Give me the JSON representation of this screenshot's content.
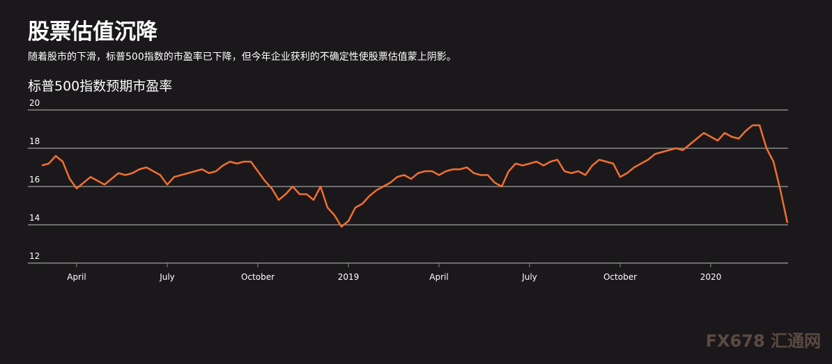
{
  "title": "股票估值沉降",
  "subtitle": "随着股市的下滑，标普500指数的市盈率已下降，但今年企业获利的不确定性使股票估值蒙上阴影。",
  "watermark": "FX678 汇通网",
  "chart_data": {
    "type": "line",
    "title": "标普500指数预期市盈率",
    "categories": [
      null,
      null,
      null,
      null,
      null,
      "April",
      null,
      null,
      null,
      null,
      null,
      null,
      null,
      null,
      null,
      null,
      null,
      null,
      "July",
      null,
      null,
      null,
      null,
      null,
      null,
      null,
      null,
      null,
      null,
      null,
      null,
      "October",
      null,
      null,
      null,
      null,
      null,
      null,
      null,
      null,
      null,
      null,
      null,
      null,
      "2019",
      null,
      null,
      null,
      null,
      null,
      null,
      null,
      null,
      null,
      null,
      null,
      null,
      "April",
      null,
      null,
      null,
      null,
      null,
      null,
      null,
      null,
      null,
      null,
      null,
      null,
      "July",
      null,
      null,
      null,
      null,
      null,
      null,
      null,
      null,
      null,
      null,
      null,
      null,
      "October",
      null,
      null,
      null,
      null,
      null,
      null,
      null,
      null,
      null,
      null,
      null,
      null,
      "2020",
      null,
      null,
      null,
      null,
      null,
      null,
      null,
      null,
      null,
      null,
      null
    ],
    "values": [
      17.1,
      17.2,
      17.6,
      17.3,
      16.4,
      15.9,
      16.2,
      16.5,
      16.3,
      16.1,
      16.4,
      16.7,
      16.6,
      16.7,
      16.9,
      17.0,
      16.8,
      16.6,
      16.1,
      16.5,
      16.6,
      16.7,
      16.8,
      16.9,
      16.7,
      16.8,
      17.1,
      17.3,
      17.2,
      17.3,
      17.3,
      16.8,
      16.3,
      15.9,
      15.3,
      15.6,
      16.0,
      15.6,
      15.6,
      15.3,
      16.0,
      14.9,
      14.5,
      13.9,
      14.2,
      14.9,
      15.1,
      15.5,
      15.8,
      16.0,
      16.2,
      16.5,
      16.6,
      16.4,
      16.7,
      16.8,
      16.8,
      16.6,
      16.8,
      16.9,
      16.9,
      17.0,
      16.7,
      16.6,
      16.6,
      16.2,
      16.0,
      16.8,
      17.2,
      17.1,
      17.2,
      17.3,
      17.1,
      17.3,
      17.4,
      16.8,
      16.7,
      16.8,
      16.6,
      17.1,
      17.4,
      17.3,
      17.2,
      16.5,
      16.7,
      17.0,
      17.2,
      17.4,
      17.7,
      17.8,
      17.9,
      18.0,
      17.9,
      18.2,
      18.5,
      18.8,
      18.6,
      18.4,
      18.8,
      18.6,
      18.5,
      18.9,
      19.2,
      19.2,
      18.0,
      17.3,
      15.8,
      14.1
    ],
    "color": "#f07030",
    "ylim": [
      12,
      20
    ],
    "yticks": [
      12,
      14,
      16,
      18,
      20
    ],
    "grid": true
  }
}
